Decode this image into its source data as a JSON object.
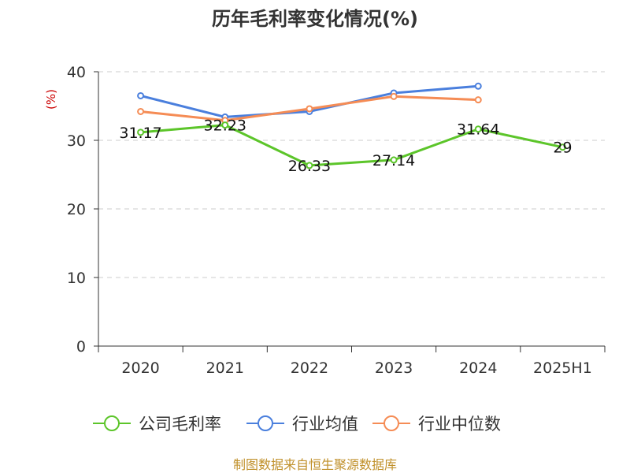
{
  "chart_data": {
    "type": "line",
    "title": "历年毛利率变化情况(%)",
    "ylabel": "(%)",
    "categories": [
      "2020",
      "2021",
      "2022",
      "2023",
      "2024",
      "2025H1"
    ],
    "ylim": [
      0,
      40
    ],
    "yticks": [
      0,
      10,
      20,
      30,
      40
    ],
    "grid": true,
    "legend_position": "bottom",
    "series": [
      {
        "name": "公司毛利率",
        "color": "#5cc52a",
        "values": [
          31.17,
          32.23,
          26.33,
          27.14,
          31.64,
          29
        ],
        "labels": [
          "31.17",
          "32.23",
          "26.33",
          "27.14",
          "31.64",
          "29"
        ]
      },
      {
        "name": "行业均值",
        "color": "#4a7fdd",
        "values": [
          36.5,
          33.4,
          34.2,
          36.9,
          37.9,
          null
        ]
      },
      {
        "name": "行业中位数",
        "color": "#f58c55",
        "values": [
          34.2,
          32.9,
          34.6,
          36.4,
          35.9,
          null
        ]
      }
    ]
  },
  "source_note": "制图数据来自恒生聚源数据库"
}
